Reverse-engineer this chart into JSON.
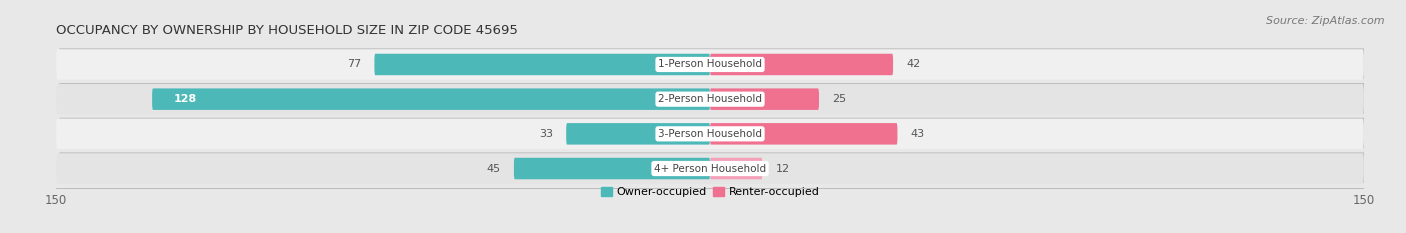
{
  "title": "OCCUPANCY BY OWNERSHIP BY HOUSEHOLD SIZE IN ZIP CODE 45695",
  "source": "Source: ZipAtlas.com",
  "categories": [
    "1-Person Household",
    "2-Person Household",
    "3-Person Household",
    "4+ Person Household"
  ],
  "owner_values": [
    77,
    128,
    33,
    45
  ],
  "renter_values": [
    42,
    25,
    43,
    12
  ],
  "owner_color": "#4db8b8",
  "renter_color": "#f07090",
  "renter_color_light": "#f4a0b8",
  "owner_label": "Owner-occupied",
  "renter_label": "Renter-occupied",
  "xlim": 150,
  "bg_color": "#e8e8e8",
  "row_colors": [
    "#f5f5f5",
    "#e0e0e0"
  ],
  "shadow_color": "#cccccc",
  "title_fontsize": 9.5,
  "source_fontsize": 8,
  "label_fontsize": 7.5,
  "tick_fontsize": 8.5,
  "legend_fontsize": 8,
  "value_fontsize": 8
}
